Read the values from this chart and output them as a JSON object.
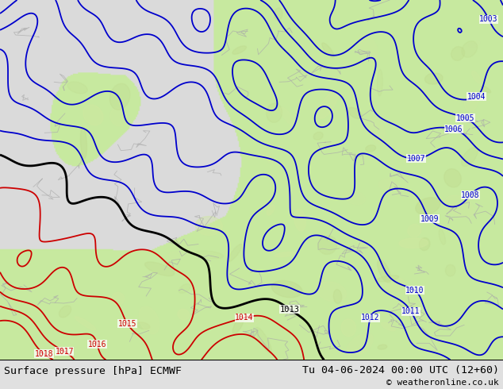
{
  "title_left": "Surface pressure [hPa] ECMWF",
  "title_right": "Tu 04-06-2024 00:00 UTC (12+60)",
  "copyright": "© weatheronline.co.uk",
  "bg_color": "#e0e0e0",
  "land_color_light": "#c8e8a0",
  "land_color_dark": "#b8d890",
  "sea_color": "#d8d8d8",
  "border_color": "#aaaaaa",
  "blue_color": "#0000cc",
  "red_color": "#cc0000",
  "black_color": "#000000",
  "bottom_bar_color": "#ffffff",
  "figsize": [
    6.34,
    4.9
  ],
  "dpi": 100
}
